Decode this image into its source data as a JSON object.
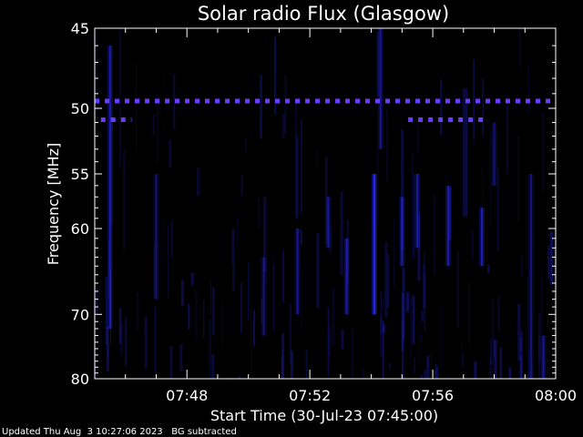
{
  "chart_data": {
    "type": "heatmap",
    "title": "Solar radio Flux (Glasgow)",
    "xlabel": "Start Time (30-Jul-23 07:45:00)",
    "ylabel": "Frequency [MHz]",
    "x_tick_labels": [
      "07:48",
      "07:52",
      "07:56",
      "08:00"
    ],
    "x_tick_minutes": [
      48,
      52,
      56,
      60
    ],
    "xlim_minutes": [
      45,
      60
    ],
    "y_tick_labels": [
      "45",
      "50",
      "55",
      "60",
      "70",
      "80"
    ],
    "y_tick_values": [
      45,
      50,
      55,
      60,
      70,
      80
    ],
    "ylim": [
      45,
      80
    ],
    "y_scale": "reciprocal",
    "colors": {
      "background": "#000000",
      "emission": "#2a2aff",
      "interference": "#6a3bff",
      "axes": "#ffffff"
    },
    "interference_bands": [
      {
        "frequency_mhz": 49.5,
        "time_ranges": [
          [
            45,
            60
          ]
        ]
      },
      {
        "frequency_mhz": 50.8,
        "time_ranges": [
          [
            45.2,
            46.2
          ],
          [
            55.2,
            57.8
          ]
        ]
      }
    ],
    "bursts": [
      {
        "time": 45.5,
        "f_start": 46,
        "f_end": 72,
        "intensity": 0.55
      },
      {
        "time": 47.0,
        "f_start": 55,
        "f_end": 68,
        "intensity": 0.35
      },
      {
        "time": 50.5,
        "f_start": 63,
        "f_end": 73,
        "intensity": 0.35
      },
      {
        "time": 51.6,
        "f_start": 60,
        "f_end": 70,
        "intensity": 0.45
      },
      {
        "time": 52.6,
        "f_start": 57,
        "f_end": 62,
        "intensity": 0.45
      },
      {
        "time": 53.2,
        "f_start": 61,
        "f_end": 70,
        "intensity": 0.5
      },
      {
        "time": 54.1,
        "f_start": 55,
        "f_end": 70,
        "intensity": 0.85
      },
      {
        "time": 54.3,
        "f_start": 45,
        "f_end": 53,
        "intensity": 0.45
      },
      {
        "time": 55.0,
        "f_start": 57,
        "f_end": 64,
        "intensity": 0.55
      },
      {
        "time": 55.5,
        "f_start": 55,
        "f_end": 62,
        "intensity": 0.5
      },
      {
        "time": 56.5,
        "f_start": 56,
        "f_end": 64,
        "intensity": 0.55
      },
      {
        "time": 57.6,
        "f_start": 58,
        "f_end": 64,
        "intensity": 0.6
      },
      {
        "time": 58.0,
        "f_start": 51,
        "f_end": 56,
        "intensity": 0.35
      },
      {
        "time": 59.2,
        "f_start": 55,
        "f_end": 80,
        "intensity": 0.35
      },
      {
        "time": 59.6,
        "f_start": 73,
        "f_end": 80,
        "intensity": 0.45
      }
    ]
  },
  "footer": {
    "updated": "Updated Thu Aug  3 10:27:06 2023",
    "note": "BG subtracted"
  }
}
